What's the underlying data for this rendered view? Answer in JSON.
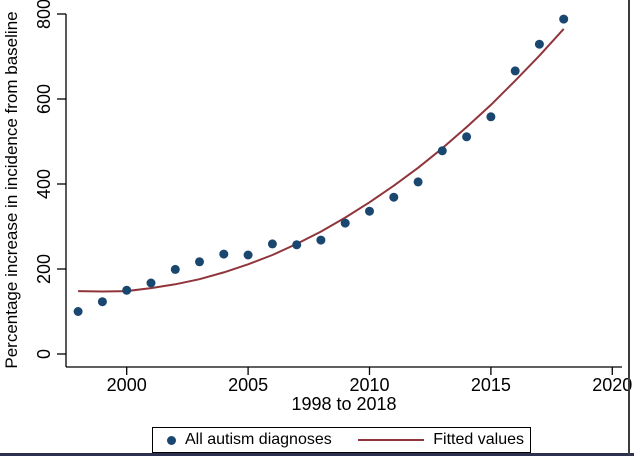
{
  "chart_data": {
    "type": "scatter",
    "title": "",
    "xlabel": "1998 to 2018",
    "ylabel": "Percentage increase in incidence from baseline",
    "xlim": [
      1997.5,
      2020.4
    ],
    "ylim": [
      0,
      800
    ],
    "x_ticks": [
      2000,
      2005,
      2010,
      2015,
      2020
    ],
    "y_ticks": [
      0,
      200,
      400,
      600,
      800
    ],
    "grid": false,
    "legend_position": "bottom",
    "x": [
      1998,
      1999,
      2000,
      2001,
      2002,
      2003,
      2004,
      2005,
      2006,
      2007,
      2008,
      2009,
      2010,
      2011,
      2012,
      2013,
      2014,
      2015,
      2016,
      2017,
      2018
    ],
    "series": [
      {
        "name": "All autism diagnoses",
        "type": "scatter",
        "color": "#1a476f",
        "values": [
          100,
          123,
          150,
          167,
          199,
          217,
          235,
          233,
          259,
          257,
          268,
          308,
          336,
          369,
          405,
          478,
          511,
          558,
          666,
          729,
          788
        ]
      },
      {
        "name": "Fitted values",
        "type": "line",
        "color": "#90353b",
        "values": [
          148,
          147,
          148,
          155,
          164,
          176,
          192,
          211,
          233,
          259,
          288,
          321,
          357,
          396,
          438,
          484,
          534,
          586,
          643,
          702,
          765
        ]
      }
    ]
  },
  "frame": {
    "background": "#ffffff",
    "axis_color": "#000000",
    "bottom_border_color": "#2c3152",
    "right_border_color": "#3c3c3c"
  }
}
